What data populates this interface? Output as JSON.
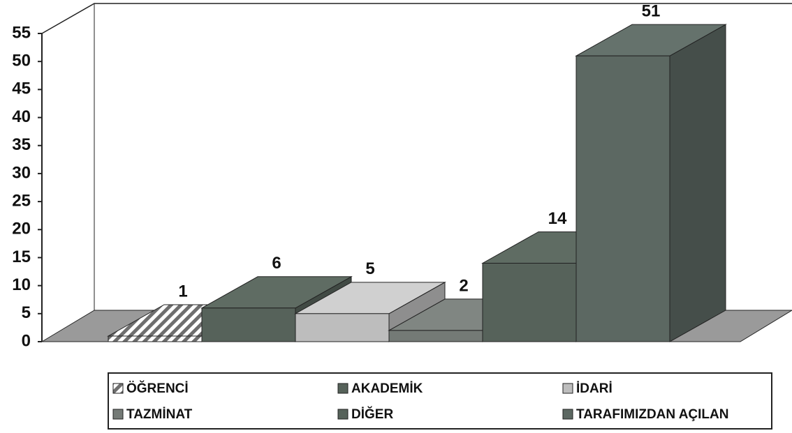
{
  "chart_data": {
    "type": "bar3d",
    "categories": [
      "ÖĞRENCİ",
      "AKADEMİK",
      "İDARİ",
      "TAZMİNAT",
      "DİĞER",
      "TARAFIMIZDAN AÇILAN"
    ],
    "values": [
      1,
      6,
      5,
      2,
      14,
      51
    ],
    "colors": [
      "#8a8a8a",
      "#56625a",
      "#bdbdbd",
      "#747a76",
      "#56625a",
      "#5c6862"
    ],
    "hatch": [
      true,
      false,
      false,
      false,
      false,
      false
    ],
    "ylim": [
      0,
      55
    ],
    "yticks": [
      0,
      5,
      10,
      15,
      20,
      25,
      30,
      35,
      40,
      45,
      50,
      55
    ],
    "grid": false,
    "legend": "bottom"
  }
}
